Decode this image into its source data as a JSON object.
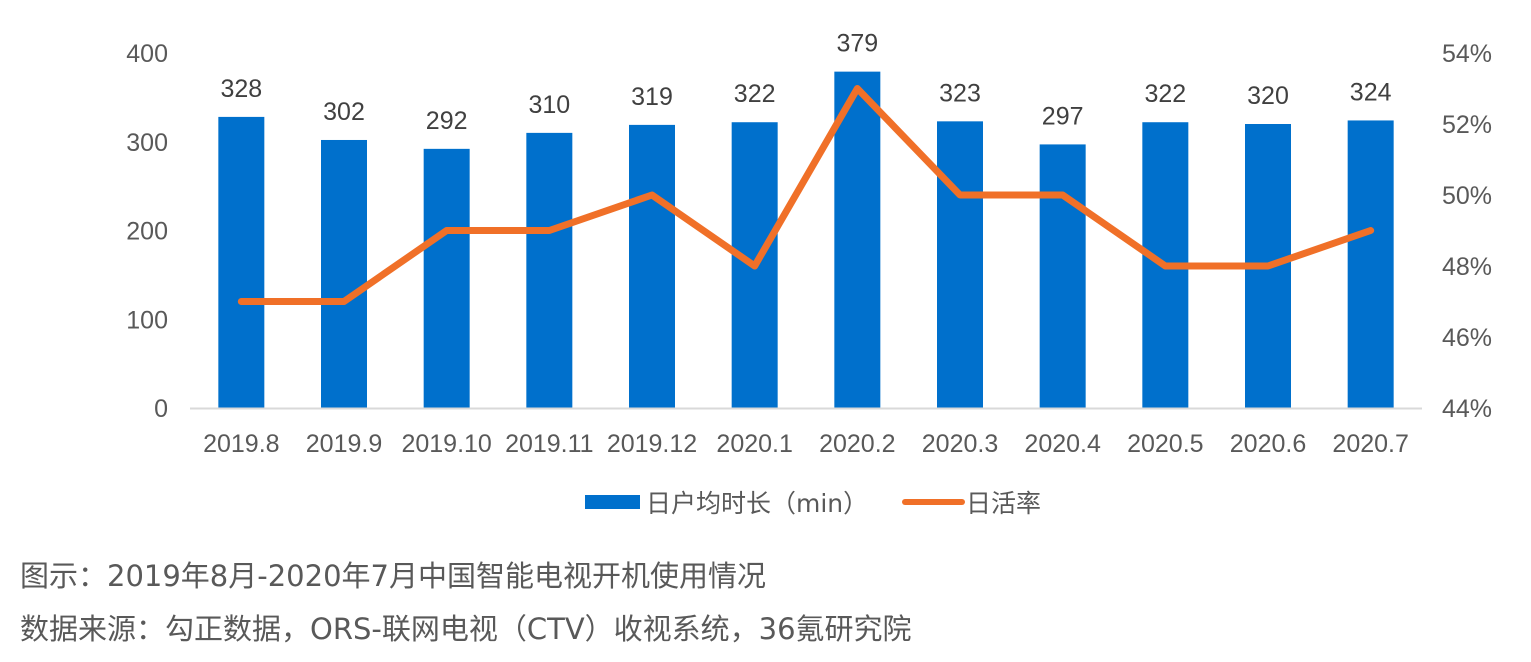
{
  "chart_data": {
    "type": "bar+line",
    "title": "",
    "categories": [
      "2019.8",
      "2019.9",
      "2019.10",
      "2019.11",
      "2019.12",
      "2020.1",
      "2020.2",
      "2020.3",
      "2020.4",
      "2020.5",
      "2020.6",
      "2020.7"
    ],
    "series": [
      {
        "name": "日户均时长（min）",
        "type": "bar",
        "axis": "left",
        "values": [
          328,
          302,
          292,
          310,
          319,
          322,
          379,
          323,
          297,
          322,
          320,
          324
        ],
        "data_labels": [
          "328",
          "302",
          "292",
          "310",
          "319",
          "322",
          "379",
          "323",
          "297",
          "322",
          "320",
          "324"
        ],
        "color": "#0070CC"
      },
      {
        "name": "日活率",
        "type": "line",
        "axis": "right",
        "values": [
          0.47,
          0.47,
          0.49,
          0.49,
          0.5,
          0.48,
          0.53,
          0.5,
          0.5,
          0.48,
          0.48,
          0.49
        ],
        "color": "#F07028"
      }
    ],
    "y_left": {
      "range": [
        0,
        400
      ],
      "ticks": [
        0,
        100,
        200,
        300,
        400
      ],
      "tick_labels": [
        "0",
        "100",
        "200",
        "300",
        "400"
      ]
    },
    "y_right": {
      "range": [
        0.44,
        0.54
      ],
      "ticks": [
        0.44,
        0.46,
        0.48,
        0.5,
        0.52,
        0.54
      ],
      "tick_labels": [
        "44%",
        "46%",
        "48%",
        "50%",
        "52%",
        "54%"
      ]
    },
    "grid": false,
    "legend_position": "bottom",
    "axis_color": "#D9D9D9"
  },
  "captions": {
    "figure": "图示：2019年8月-2020年7月中国智能电视开机使用情况",
    "source": "数据来源：勾正数据，ORS-联网电视（CTV）收视系统，36氪研究院"
  }
}
